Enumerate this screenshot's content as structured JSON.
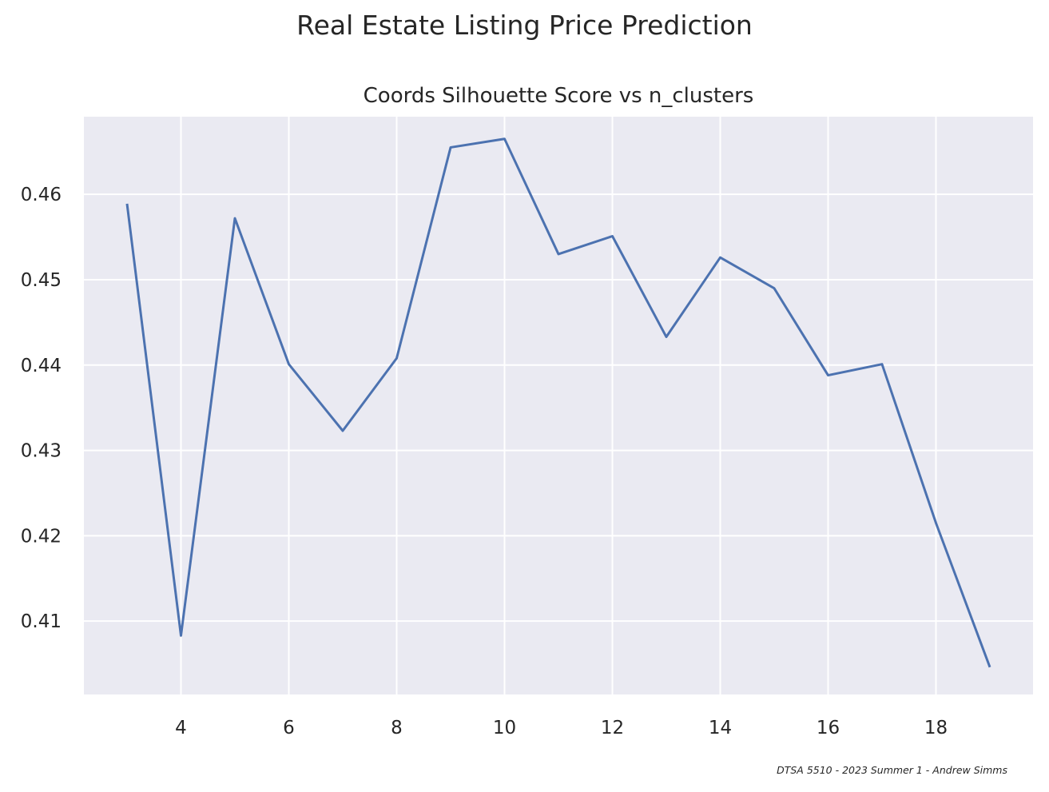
{
  "figure": {
    "suptitle": "Real Estate Listing Price Prediction",
    "footer": "DTSA 5510 - 2023 Summer 1 - Andrew Simms"
  },
  "chart_data": {
    "type": "line",
    "title": "Coords Silhouette Score vs n_clusters",
    "xlabel": "",
    "ylabel": "",
    "x": [
      3,
      4,
      5,
      6,
      7,
      8,
      9,
      10,
      11,
      12,
      13,
      14,
      15,
      16,
      17,
      18,
      19
    ],
    "series": [
      {
        "values": [
          0.4589,
          0.4083,
          0.4572,
          0.4401,
          0.4323,
          0.4408,
          0.4655,
          0.4665,
          0.453,
          0.4551,
          0.4433,
          0.4526,
          0.449,
          0.4388,
          0.4401,
          0.4215,
          0.4046
        ],
        "color": "#4c72b0"
      }
    ],
    "xticks": [
      4,
      6,
      8,
      10,
      12,
      14,
      16,
      18
    ],
    "yticks": [
      0.41,
      0.42,
      0.43,
      0.44,
      0.45,
      0.46
    ],
    "ytick_labels": [
      "0.41",
      "0.42",
      "0.43",
      "0.44",
      "0.45",
      "0.46"
    ],
    "xlim": [
      2.2,
      19.8
    ],
    "ylim": [
      0.4014,
      0.4691
    ],
    "grid": true,
    "style": {
      "axes_background": "#eaeaf2",
      "grid_color": "#ffffff"
    }
  }
}
